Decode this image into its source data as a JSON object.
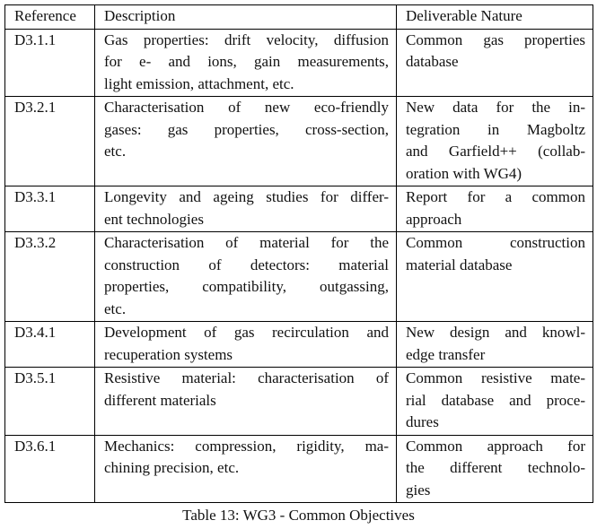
{
  "table": {
    "header": [
      "Reference",
      "Description",
      "Deliverable Nature"
    ],
    "rows": [
      [
        [
          "D3.1.1"
        ],
        [
          "Gas properties: drift velocity, diffusion",
          "for e- and ions, gain measurements,",
          "light emission, attachment, etc."
        ],
        [
          "Common gas properties",
          "database"
        ]
      ],
      [
        [
          "D3.2.1"
        ],
        [
          "Characterisation of new eco-friendly",
          "gases:  gas properties, cross-section,",
          "etc."
        ],
        [
          "New data for the in-",
          "tegration in Magboltz",
          "and Garfield++ (collab-",
          "oration with WG4)"
        ]
      ],
      [
        [
          "D3.3.1"
        ],
        [
          "Longevity and ageing studies for differ-",
          "ent technologies"
        ],
        [
          "Report for a common",
          "approach"
        ]
      ],
      [
        [
          "D3.3.2"
        ],
        [
          "Characterisation of material for the",
          "construction of detectors:  material",
          "properties, compatibility, outgassing,",
          "etc."
        ],
        [
          "Common construction",
          "material database"
        ]
      ],
      [
        [
          "D3.4.1"
        ],
        [
          "Development of gas recirculation and",
          "recuperation systems"
        ],
        [
          "New design and knowl-",
          "edge transfer"
        ]
      ],
      [
        [
          "D3.5.1"
        ],
        [
          "Resistive material: characterisation of",
          "different materials"
        ],
        [
          "Common resistive mate-",
          "rial database and proce-",
          "dures"
        ]
      ],
      [
        [
          "D3.6.1"
        ],
        [
          "Mechanics: compression, rigidity, ma-",
          "chining precision, etc."
        ],
        [
          "Common approach for",
          "the different technolo-",
          "gies"
        ]
      ]
    ]
  },
  "caption": "Table 13: WG3 - Common Objectives"
}
